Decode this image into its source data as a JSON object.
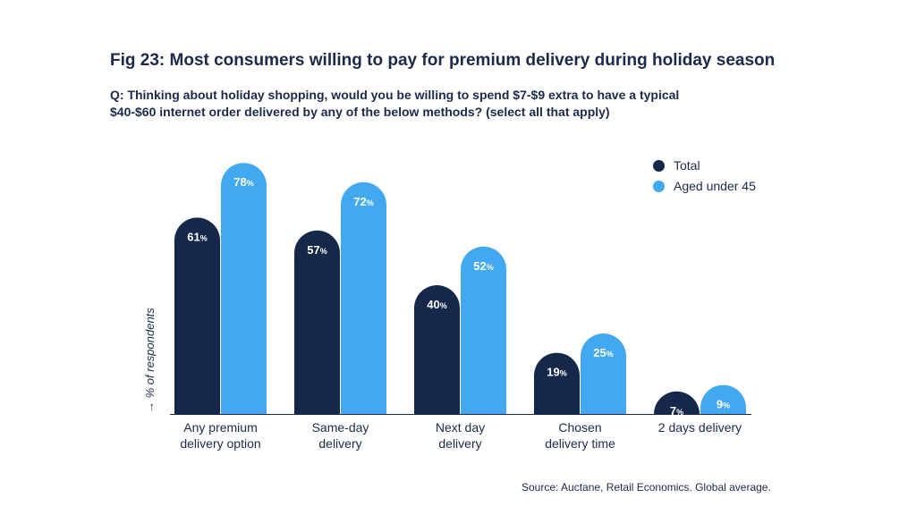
{
  "title": "Fig 23: Most consumers willing to pay for premium delivery during holiday season",
  "question": "Q: Thinking about holiday shopping, would you be willing to spend $7-$9 extra to have a typical $40-$60 internet order delivered by any of the below methods? (select all that apply)",
  "source": "Source: Auctane, Retail Economics. Global average.",
  "colors": {
    "total": "#16284a",
    "under45": "#42a8ef"
  },
  "chart_data": {
    "type": "bar",
    "ylabel": "→ % of respondents",
    "unit": "%",
    "ylim": [
      0,
      80
    ],
    "legend_position": "top-right",
    "grid": false,
    "categories": [
      [
        "Any premium",
        "delivery option"
      ],
      [
        "Same-day",
        "delivery"
      ],
      [
        "Next day",
        "delivery"
      ],
      [
        "Chosen",
        "delivery time"
      ],
      [
        "2 days delivery"
      ]
    ],
    "series": [
      {
        "name": "Total",
        "values": [
          61,
          57,
          40,
          19,
          7
        ]
      },
      {
        "name": "Aged under 45",
        "values": [
          78,
          72,
          52,
          25,
          9
        ]
      }
    ]
  }
}
